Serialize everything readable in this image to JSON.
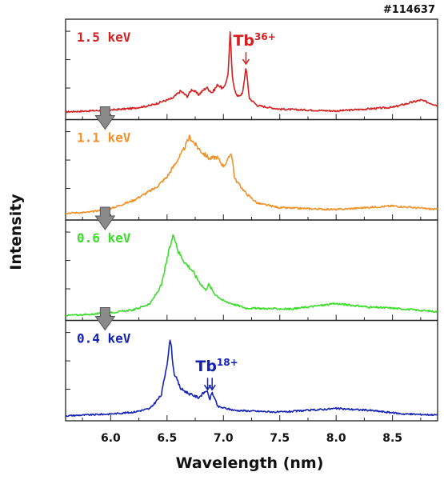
{
  "shot_label": "#114637",
  "colors": {
    "frame": "#222222",
    "arrow_fill": "#8a8a8a",
    "arrow_stroke": "#555555"
  },
  "chart_data": {
    "type": "line",
    "xlabel": "Wavelength (nm)",
    "ylabel": "Intensity",
    "xlim": [
      5.6,
      8.9
    ],
    "ylim": [
      0,
      1
    ],
    "x_ticks": [
      "6.0",
      "6.5",
      "7.0",
      "7.5",
      "8.0",
      "8.5"
    ],
    "grid": false,
    "series": [
      {
        "name": "1.5 keV",
        "color": "#d42020",
        "points": [
          [
            5.6,
            0.05
          ],
          [
            5.8,
            0.06
          ],
          [
            6.0,
            0.07
          ],
          [
            6.2,
            0.09
          ],
          [
            6.35,
            0.12
          ],
          [
            6.45,
            0.16
          ],
          [
            6.55,
            0.2
          ],
          [
            6.62,
            0.28
          ],
          [
            6.68,
            0.22
          ],
          [
            6.72,
            0.3
          ],
          [
            6.78,
            0.24
          ],
          [
            6.85,
            0.32
          ],
          [
            6.9,
            0.26
          ],
          [
            6.95,
            0.35
          ],
          [
            7.0,
            0.3
          ],
          [
            7.04,
            0.45
          ],
          [
            7.06,
            0.92
          ],
          [
            7.08,
            0.4
          ],
          [
            7.12,
            0.22
          ],
          [
            7.17,
            0.25
          ],
          [
            7.2,
            0.55
          ],
          [
            7.23,
            0.2
          ],
          [
            7.3,
            0.12
          ],
          [
            7.5,
            0.08
          ],
          [
            8.0,
            0.06
          ],
          [
            8.5,
            0.1
          ],
          [
            8.75,
            0.18
          ],
          [
            8.9,
            0.12
          ]
        ]
      },
      {
        "name": "1.1 keV",
        "color": "#f0922a",
        "points": [
          [
            5.6,
            0.04
          ],
          [
            5.8,
            0.05
          ],
          [
            6.0,
            0.09
          ],
          [
            6.2,
            0.18
          ],
          [
            6.4,
            0.32
          ],
          [
            6.5,
            0.44
          ],
          [
            6.58,
            0.6
          ],
          [
            6.64,
            0.72
          ],
          [
            6.7,
            0.88
          ],
          [
            6.76,
            0.78
          ],
          [
            6.82,
            0.7
          ],
          [
            6.88,
            0.64
          ],
          [
            6.94,
            0.66
          ],
          [
            7.0,
            0.56
          ],
          [
            7.04,
            0.62
          ],
          [
            7.07,
            0.72
          ],
          [
            7.1,
            0.42
          ],
          [
            7.2,
            0.26
          ],
          [
            7.3,
            0.15
          ],
          [
            7.5,
            0.1
          ],
          [
            8.0,
            0.08
          ],
          [
            8.5,
            0.12
          ],
          [
            8.9,
            0.08
          ]
        ]
      },
      {
        "name": "0.6 keV",
        "color": "#3cdc2a",
        "points": [
          [
            5.6,
            0.02
          ],
          [
            5.8,
            0.03
          ],
          [
            6.0,
            0.05
          ],
          [
            6.2,
            0.08
          ],
          [
            6.35,
            0.15
          ],
          [
            6.45,
            0.35
          ],
          [
            6.52,
            0.75
          ],
          [
            6.56,
            0.92
          ],
          [
            6.6,
            0.72
          ],
          [
            6.66,
            0.6
          ],
          [
            6.72,
            0.52
          ],
          [
            6.78,
            0.4
          ],
          [
            6.84,
            0.3
          ],
          [
            6.87,
            0.36
          ],
          [
            6.92,
            0.26
          ],
          [
            7.0,
            0.18
          ],
          [
            7.2,
            0.1
          ],
          [
            7.6,
            0.09
          ],
          [
            8.0,
            0.15
          ],
          [
            8.3,
            0.11
          ],
          [
            8.5,
            0.1
          ],
          [
            8.9,
            0.06
          ]
        ]
      },
      {
        "name": "0.4 keV",
        "color": "#1422b4",
        "points": [
          [
            5.6,
            0.02
          ],
          [
            5.8,
            0.03
          ],
          [
            6.0,
            0.04
          ],
          [
            6.2,
            0.06
          ],
          [
            6.35,
            0.1
          ],
          [
            6.45,
            0.25
          ],
          [
            6.5,
            0.6
          ],
          [
            6.53,
            0.88
          ],
          [
            6.56,
            0.5
          ],
          [
            6.62,
            0.32
          ],
          [
            6.7,
            0.26
          ],
          [
            6.78,
            0.22
          ],
          [
            6.85,
            0.3
          ],
          [
            6.88,
            0.2
          ],
          [
            6.9,
            0.28
          ],
          [
            6.95,
            0.12
          ],
          [
            7.1,
            0.08
          ],
          [
            7.5,
            0.06
          ],
          [
            8.0,
            0.1
          ],
          [
            8.3,
            0.08
          ],
          [
            8.6,
            0.04
          ],
          [
            8.9,
            0.03
          ]
        ]
      }
    ],
    "annotations": [
      {
        "panel": 0,
        "text": "Tb",
        "superscript": "36+",
        "x": 7.2,
        "color": "#d42020"
      },
      {
        "panel": 3,
        "text": "Tb",
        "superscript": "18+",
        "x": [
          6.86,
          6.9
        ],
        "color": "#1422b4"
      }
    ]
  }
}
